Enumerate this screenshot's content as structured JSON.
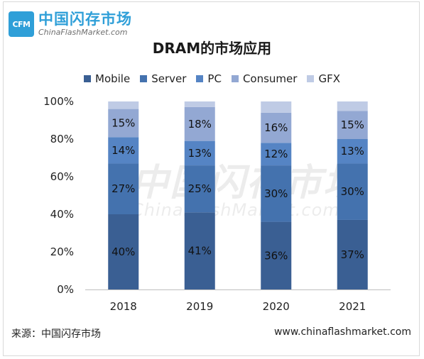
{
  "header": {
    "logo_mark": "CFM",
    "logo_cn": "中国闪存市场",
    "logo_en": "ChinaFlashMarket.com"
  },
  "watermark": {
    "cn": "中国闪存市场",
    "en": "ChinaFlashMarket.com"
  },
  "footer": {
    "source": "来源：中国闪存市场",
    "website": "www.chinaflashmarket.com"
  },
  "chart_data": {
    "type": "bar",
    "stacked": true,
    "title": "DRAM的市场应用",
    "legend_position": "top",
    "grid": false,
    "categories": [
      "2018",
      "2019",
      "2020",
      "2021"
    ],
    "ylim": [
      0,
      100
    ],
    "yticks": [
      "0%",
      "20%",
      "40%",
      "60%",
      "80%",
      "100%"
    ],
    "series": [
      {
        "name": "Mobile",
        "color": "#3a5f93",
        "values": [
          40,
          41,
          36,
          37
        ],
        "labels": [
          "40%",
          "41%",
          "36%",
          "37%"
        ]
      },
      {
        "name": "Server",
        "color": "#4472ae",
        "values": [
          27,
          25,
          30,
          30
        ],
        "labels": [
          "27%",
          "25%",
          "30%",
          "30%"
        ]
      },
      {
        "name": "PC",
        "color": "#5584c4",
        "values": [
          14,
          13,
          12,
          13
        ],
        "labels": [
          "14%",
          "13%",
          "12%",
          "13%"
        ]
      },
      {
        "name": "Consumer",
        "color": "#93a8d3",
        "values": [
          15,
          18,
          16,
          15
        ],
        "labels": [
          "15%",
          "18%",
          "16%",
          "15%"
        ]
      },
      {
        "name": "GFX",
        "color": "#bfcbe5",
        "values": [
          4,
          3,
          6,
          5
        ],
        "labels": [
          "",
          "",
          "",
          ""
        ]
      }
    ]
  }
}
